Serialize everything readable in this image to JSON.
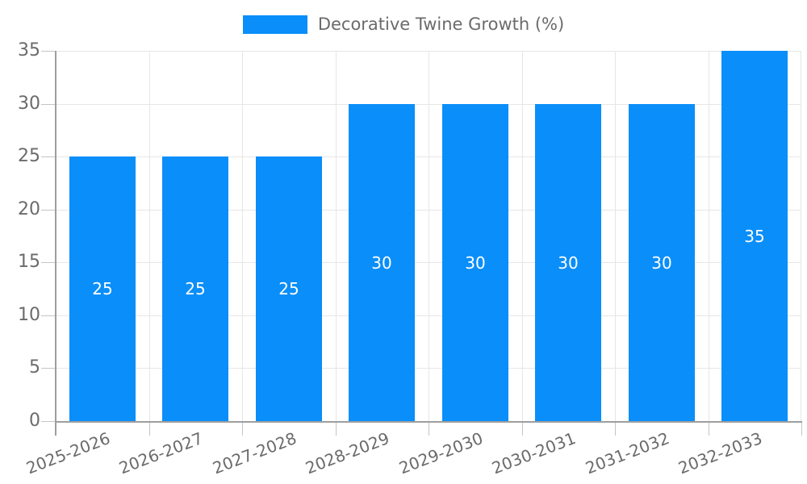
{
  "legend": {
    "label": "Decorative Twine Growth (%)"
  },
  "chart_data": {
    "type": "bar",
    "title": "Decorative Twine Growth (%)",
    "categories": [
      "2025-2026",
      "2026-2027",
      "2027-2028",
      "2028-2029",
      "2029-2030",
      "2030-2031",
      "2031-2032",
      "2032-2033"
    ],
    "values": [
      25,
      25,
      25,
      30,
      30,
      30,
      30,
      35
    ],
    "xlabel": "",
    "ylabel": "",
    "ylim": [
      0,
      35
    ],
    "yticks": [
      0,
      5,
      10,
      15,
      20,
      25,
      30,
      35
    ],
    "grid": true,
    "legend_position": "top",
    "value_label_position": "center"
  },
  "colors": {
    "bar": "#0a8ef9",
    "grid": "#e6e6e6",
    "tick": "#c4c4c4",
    "axis": "#9e9e9e",
    "label_text": "#6b6b6b",
    "value_text": "#ffffff",
    "background": "#ffffff"
  }
}
